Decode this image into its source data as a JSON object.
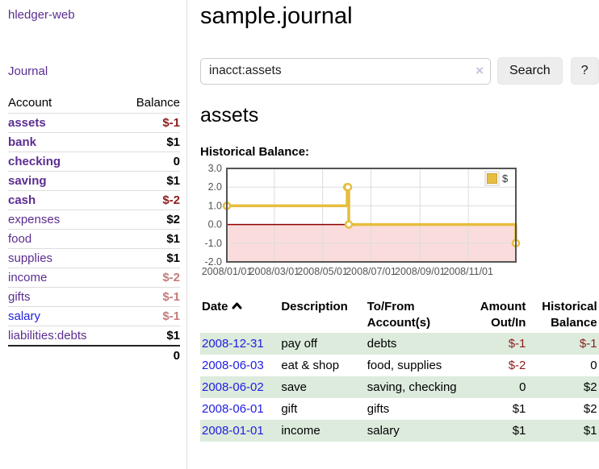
{
  "app": {
    "title": "hledger-web"
  },
  "sidebar": {
    "journal_link": "Journal",
    "table": {
      "headers": {
        "account": "Account",
        "balance": "Balance"
      },
      "accounts": [
        {
          "name": "assets",
          "balance": "$-1",
          "depth": 0,
          "bold": true,
          "balance_style": "neg"
        },
        {
          "name": "bank",
          "balance": "$1",
          "depth": 1,
          "bold": true,
          "balance_style": "pos"
        },
        {
          "name": "checking",
          "balance": "0",
          "depth": 2,
          "bold": true,
          "balance_style": "pos"
        },
        {
          "name": "saving",
          "balance": "$1",
          "depth": 2,
          "bold": true,
          "balance_style": "pos"
        },
        {
          "name": "cash",
          "balance": "$-2",
          "depth": 1,
          "bold": true,
          "balance_style": "neg"
        },
        {
          "name": "expenses",
          "balance": "$2",
          "depth": 0,
          "bold": false,
          "balance_style": "pos"
        },
        {
          "name": "food",
          "balance": "$1",
          "depth": 1,
          "bold": false,
          "balance_style": "pos"
        },
        {
          "name": "supplies",
          "balance": "$1",
          "depth": 1,
          "bold": false,
          "balance_style": "pos"
        },
        {
          "name": "income",
          "balance": "$-2",
          "depth": 0,
          "bold": false,
          "balance_style": "neg-muted"
        },
        {
          "name": "gifts",
          "balance": "$-1",
          "depth": 1,
          "bold": false,
          "balance_style": "neg-muted"
        },
        {
          "name": "salary",
          "balance": "$-1",
          "depth": 1,
          "bold": false,
          "balance_style": "neg-muted",
          "link_style": "blue"
        },
        {
          "name": "liabilities:debts",
          "balance": "$1",
          "depth": 0,
          "bold": false,
          "balance_style": "pos"
        }
      ],
      "total": "0"
    }
  },
  "header": {
    "title": "sample.journal"
  },
  "search": {
    "value": "inacct:assets",
    "clear_icon": "×",
    "button_label": "Search",
    "help_label": "?"
  },
  "account_page": {
    "title": "assets",
    "chart_label": "Historical Balance:"
  },
  "chart_data": {
    "type": "line",
    "title": "Historical Balance:",
    "x_domain": [
      "2008-01-01",
      "2008-12-31"
    ],
    "ylim": [
      -2,
      3
    ],
    "y_ticks": [
      3,
      2,
      1,
      0,
      -1,
      -2
    ],
    "x_ticks": [
      {
        "date": "2008-01-01",
        "label": "2008/01/01"
      },
      {
        "date": "2008-03-01",
        "label": "2008/03/01"
      },
      {
        "date": "2008-05-01",
        "label": "2008/05/01"
      },
      {
        "date": "2008-07-01",
        "label": "2008/07/01"
      },
      {
        "date": "2008-09-01",
        "label": "2008/09/01"
      },
      {
        "date": "2008-11-01",
        "label": "2008/11/01"
      }
    ],
    "series": [
      {
        "name": "$",
        "step": true,
        "color": "#e6bd3e",
        "marker_fill": "#ffffff",
        "points": [
          [
            "2008-01-01",
            1
          ],
          [
            "2008-06-01",
            2
          ],
          [
            "2008-06-02",
            2
          ],
          [
            "2008-06-03",
            0
          ],
          [
            "2008-12-31",
            -1
          ]
        ]
      }
    ],
    "negative_region_color": "#fbdcdc",
    "zero_line_color": "#8e0000",
    "grid_color": "#dddddd",
    "border_color": "#545454",
    "tick_label_color": "#545454",
    "legend": {
      "label": "$",
      "swatch_color": "#e6bd3e",
      "swatch_border": "#c9a32e",
      "position": "top-right"
    }
  },
  "register": {
    "headers": {
      "date": "Date",
      "description": "Description",
      "tofrom_line1": "To/From",
      "tofrom_line2": "Account(s)",
      "amount_line1": "Amount",
      "amount_line2": "Out/In",
      "balance_line1": "Historical",
      "balance_line2": "Balance"
    },
    "rows": [
      {
        "date": "2008-12-31",
        "description": "pay off",
        "accounts": "debts",
        "amount": "$-1",
        "amount_style": "neg",
        "balance": "$-1",
        "balance_style": "neg"
      },
      {
        "date": "2008-06-03",
        "description": "eat & shop",
        "accounts": "food, supplies",
        "amount": "$-2",
        "amount_style": "neg",
        "balance": "0",
        "balance_style": "pos"
      },
      {
        "date": "2008-06-02",
        "description": "save",
        "accounts": "saving, checking",
        "amount": "0",
        "amount_style": "pos",
        "balance": "$2",
        "balance_style": "pos"
      },
      {
        "date": "2008-06-01",
        "description": "gift",
        "accounts": "gifts",
        "amount": "$1",
        "amount_style": "pos",
        "balance": "$2",
        "balance_style": "pos"
      },
      {
        "date": "2008-01-01",
        "description": "income",
        "accounts": "salary",
        "amount": "$1",
        "amount_style": "pos",
        "balance": "$1",
        "balance_style": "pos"
      }
    ]
  }
}
